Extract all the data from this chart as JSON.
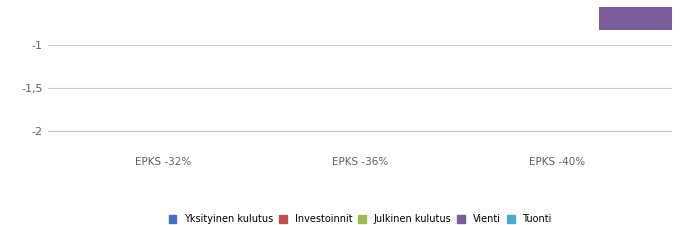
{
  "groups": [
    "EPKS -32%",
    "EPKS -36%",
    "EPKS -40%"
  ],
  "series": [
    "Yksityinen kulutus",
    "Investoinnit",
    "Julkinen kulutus",
    "Vienti",
    "Tuonti"
  ],
  "colors": [
    "#4472C4",
    "#C0504D",
    "#9BBB59",
    "#7A5E9A",
    "#4BACC6"
  ],
  "values": [
    [
      0.0,
      0.0,
      0.0,
      0.0,
      0.0
    ],
    [
      0.0,
      0.0,
      0.0,
      0.0,
      0.0
    ],
    [
      0.0,
      0.0,
      0.0,
      -0.82,
      0.0
    ]
  ],
  "ylim": [
    -2.25,
    -0.55
  ],
  "yticks": [
    -2.0,
    -1.5,
    -1.0
  ],
  "yticklabels": [
    "-2",
    "-1,5",
    "-1"
  ],
  "bar_width": 0.35,
  "background_color": "#ffffff",
  "grid_color": "#c8c8c8",
  "legend_fontsize": 7.0,
  "tick_fontsize": 8.0,
  "group_label_fontsize": 7.5
}
